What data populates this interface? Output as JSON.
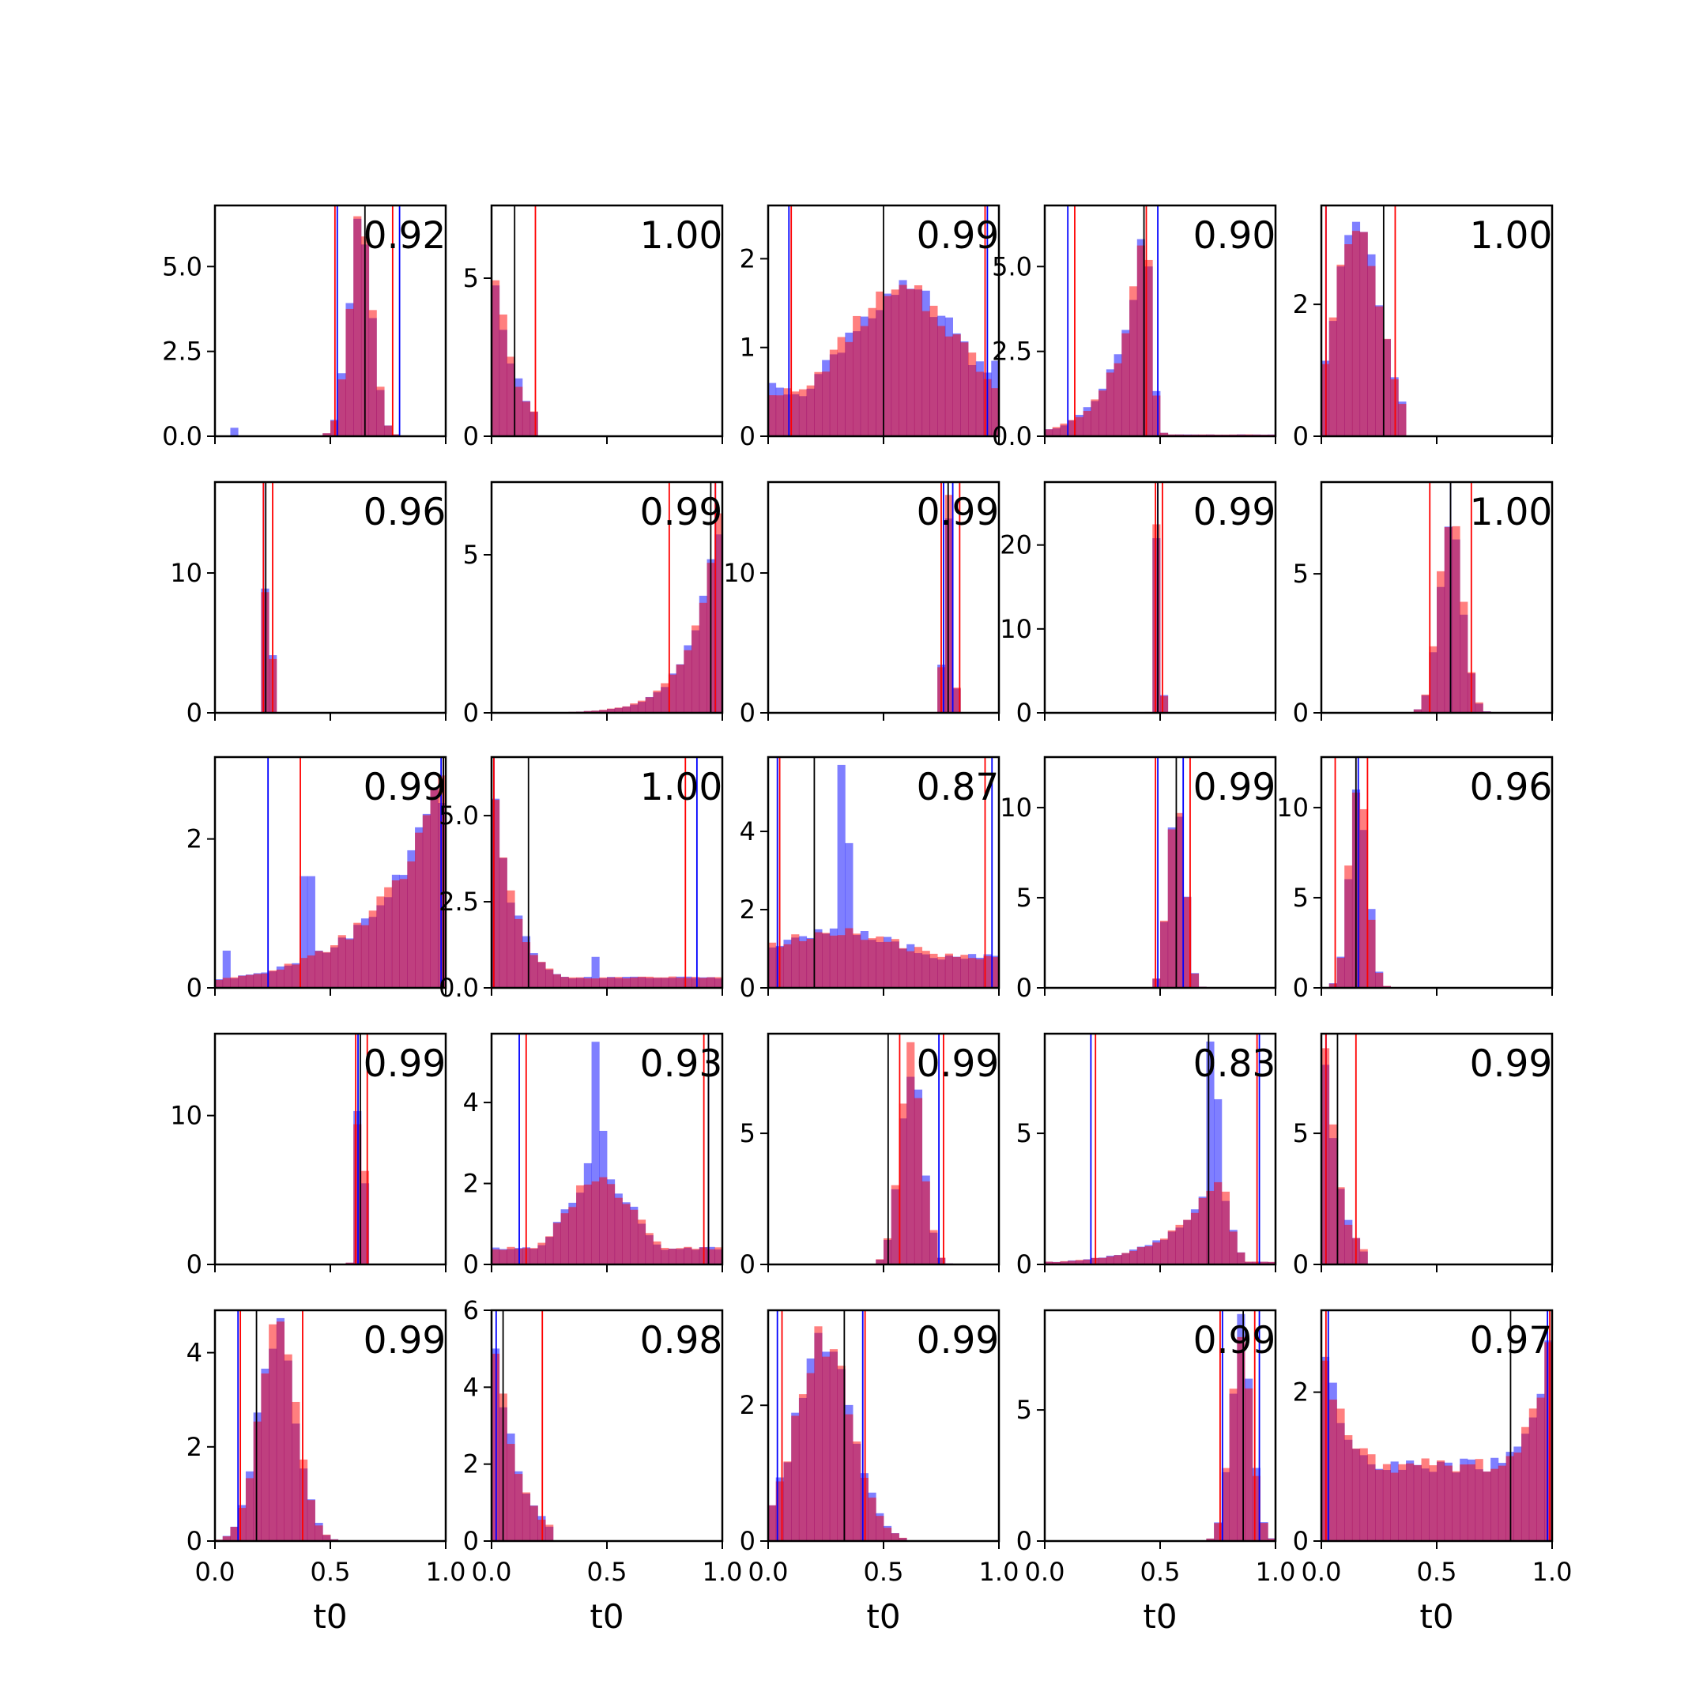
{
  "chart_data": {
    "type": "bar",
    "layout": "5x5 grid of histogram subplots",
    "xlabel": "t0",
    "xlim": [
      0,
      1
    ],
    "xticks": [
      "0.0",
      "0.5",
      "1.0"
    ],
    "series_colors": {
      "blue": "#0000ff",
      "red": "#ff0000",
      "blend": "#c03b74",
      "marker": "#000000"
    },
    "bins": 30,
    "panels": [
      {
        "row": 0,
        "col": 0,
        "score": "0.92",
        "ymax": 6.8,
        "yticks": [
          0,
          2.5,
          5
        ],
        "ytick_labels": [
          "0.0",
          "2.5",
          "5.0"
        ],
        "model": "peak",
        "center": 0.63,
        "width": 0.05,
        "floor": 0.02,
        "blue_extra": [
          [
            0.08,
            0.25
          ],
          [
            0.62,
            6.2
          ]
        ],
        "lines_black": [
          0.65
        ],
        "lines_red": [
          0.52,
          0.77
        ],
        "lines_blue": [
          0.53,
          0.8
        ]
      },
      {
        "row": 0,
        "col": 1,
        "score": "1.00",
        "ymax": 7.3,
        "yticks": [
          0,
          5
        ],
        "ytick_labels": [
          "0",
          "5"
        ],
        "model": "decay",
        "center": 0.0,
        "width": 0.09,
        "cutoff": 0.2,
        "peak": 6.3,
        "lines_black": [
          0.1
        ],
        "lines_red": [
          0.0,
          0.19
        ],
        "lines_blue": [
          0.0
        ]
      },
      {
        "row": 0,
        "col": 2,
        "score": "0.99",
        "ymax": 2.6,
        "yticks": [
          0,
          1,
          2
        ],
        "ytick_labels": [
          "0",
          "1",
          "2"
        ],
        "model": "broad",
        "center": 0.58,
        "width": 0.28,
        "floor": 0.5,
        "peak": 1.6,
        "blue_extra": [
          [
            0.02,
            0.6
          ],
          [
            0.98,
            0.85
          ]
        ],
        "lines_black": [
          0.5
        ],
        "lines_red": [
          0.1,
          0.94
        ],
        "lines_blue": [
          0.09,
          0.95
        ]
      },
      {
        "row": 0,
        "col": 3,
        "score": "0.90",
        "ymax": 6.8,
        "yticks": [
          0,
          2.5,
          5
        ],
        "ytick_labels": [
          "0.0",
          "2.5",
          "5.0"
        ],
        "model": "leftskew",
        "center": 0.43,
        "width": 0.12,
        "peak": 6.1,
        "floor": 0.05,
        "lines_black": [
          0.43
        ],
        "lines_red": [
          0.13,
          0.44
        ],
        "lines_blue": [
          0.1,
          0.49
        ]
      },
      {
        "row": 0,
        "col": 4,
        "score": "1.00",
        "ymax": 3.5,
        "yticks": [
          0,
          2
        ],
        "ytick_labels": [
          "0",
          "2"
        ],
        "model": "peak",
        "center": 0.16,
        "width": 0.1,
        "peak": 3.2,
        "cutoff": 0.38,
        "lines_black": [
          0.27
        ],
        "lines_red": [
          0.02,
          0.32
        ],
        "lines_blue": [
          0.02
        ]
      },
      {
        "row": 1,
        "col": 0,
        "score": "0.96",
        "ymax": 16.5,
        "yticks": [
          0,
          10
        ],
        "ytick_labels": [
          "0",
          "10"
        ],
        "model": "spike",
        "center": 0.23,
        "width": 0.012,
        "peak": 15.5,
        "lines_black": [
          0.22
        ],
        "lines_red": [
          0.21,
          0.25
        ],
        "lines_blue": [
          0.21
        ]
      },
      {
        "row": 1,
        "col": 1,
        "score": "0.99",
        "ymax": 7.3,
        "yticks": [
          0,
          5
        ],
        "ytick_labels": [
          "0",
          "5"
        ],
        "model": "rightrise",
        "center": 1.0,
        "width": 0.12,
        "peak": 6.9,
        "lines_black": [
          0.95
        ],
        "lines_red": [
          0.77,
          0.97
        ],
        "lines_blue": [
          0.97
        ]
      },
      {
        "row": 1,
        "col": 2,
        "score": "0.99",
        "ymax": 16.5,
        "yticks": [
          0,
          10
        ],
        "ytick_labels": [
          "0",
          "10"
        ],
        "model": "spike",
        "center": 0.78,
        "width": 0.018,
        "peak": 14.5,
        "lines_black": [
          0.78
        ],
        "lines_red": [
          0.75,
          0.83
        ],
        "lines_blue": [
          0.76,
          0.8
        ]
      },
      {
        "row": 1,
        "col": 3,
        "score": "0.99",
        "ymax": 27.5,
        "yticks": [
          0,
          10,
          20
        ],
        "ytick_labels": [
          "0",
          "10",
          "20"
        ],
        "model": "spike",
        "center": 0.49,
        "width": 0.012,
        "peak": 24.5,
        "lines_black": [
          0.49
        ],
        "lines_red": [
          0.48,
          0.51
        ],
        "lines_blue": [
          0.49
        ]
      },
      {
        "row": 1,
        "col": 4,
        "score": "1.00",
        "ymax": 8.3,
        "yticks": [
          0,
          5
        ],
        "ytick_labels": [
          "0",
          "5"
        ],
        "model": "peak",
        "center": 0.56,
        "width": 0.05,
        "peak": 7.2,
        "lines_black": [
          0.56
        ],
        "lines_red": [
          0.47,
          0.65
        ],
        "lines_blue": [
          0.56
        ]
      },
      {
        "row": 2,
        "col": 0,
        "score": "0.99",
        "ymax": 3.1,
        "yticks": [
          0,
          2
        ],
        "ytick_labels": [
          "0",
          "2"
        ],
        "model": "rightrise",
        "center": 1.0,
        "width": 0.3,
        "peak": 2.9,
        "floor": 0.1,
        "blue_extra": [
          [
            0.4,
            1.5
          ],
          [
            0.05,
            0.5
          ]
        ],
        "lines_black": [
          0.99
        ],
        "lines_red": [
          0.37,
          0.99
        ],
        "lines_blue": [
          0.23,
          0.98
        ]
      },
      {
        "row": 2,
        "col": 1,
        "score": "1.00",
        "ymax": 6.7,
        "yticks": [
          0,
          2.5,
          5
        ],
        "ytick_labels": [
          "0.0",
          "2.5",
          "5.0"
        ],
        "model": "decay",
        "center": 0.0,
        "width": 0.1,
        "peak": 6.3,
        "floor": 0.3,
        "blue_extra": [
          [
            0.45,
            0.9
          ]
        ],
        "lines_black": [
          0.16
        ],
        "lines_red": [
          0.01,
          0.84
        ],
        "lines_blue": [
          0.01,
          0.89
        ]
      },
      {
        "row": 2,
        "col": 2,
        "score": "0.87",
        "ymax": 5.9,
        "yticks": [
          0,
          2,
          4
        ],
        "ytick_labels": [
          "0",
          "2",
          "4"
        ],
        "model": "broad",
        "center": 0.3,
        "width": 0.4,
        "peak": 1.4,
        "floor": 0.8,
        "blue_extra": [
          [
            0.31,
            5.7
          ],
          [
            0.35,
            3.7
          ]
        ],
        "lines_black": [
          0.2
        ],
        "lines_red": [
          0.05,
          0.94
        ],
        "lines_blue": [
          0.04,
          0.97
        ]
      },
      {
        "row": 2,
        "col": 3,
        "score": "0.99",
        "ymax": 12.8,
        "yticks": [
          0,
          5,
          10
        ],
        "ytick_labels": [
          "0",
          "5",
          "10"
        ],
        "model": "peak",
        "center": 0.57,
        "width": 0.035,
        "peak": 11.3,
        "lines_black": [
          0.57
        ],
        "lines_red": [
          0.48,
          0.63
        ],
        "lines_blue": [
          0.49,
          0.6
        ]
      },
      {
        "row": 2,
        "col": 4,
        "score": "0.96",
        "ymax": 12.8,
        "yticks": [
          0,
          5,
          10
        ],
        "ytick_labels": [
          "0",
          "5",
          "10"
        ],
        "model": "peak",
        "center": 0.16,
        "width": 0.04,
        "peak": 11.2,
        "lines_black": [
          0.15
        ],
        "lines_red": [
          0.06,
          0.2
        ],
        "lines_blue": [
          0.16
        ]
      },
      {
        "row": 3,
        "col": 0,
        "score": "0.99",
        "ymax": 15.5,
        "yticks": [
          0,
          10
        ],
        "ytick_labels": [
          "0",
          "10"
        ],
        "model": "spike",
        "center": 0.63,
        "width": 0.015,
        "peak": 14.2,
        "lines_black": [
          0.63
        ],
        "lines_red": [
          0.61,
          0.66
        ],
        "lines_blue": [
          0.62
        ]
      },
      {
        "row": 3,
        "col": 1,
        "score": "0.93",
        "ymax": 5.7,
        "yticks": [
          0,
          2,
          4
        ],
        "ytick_labels": [
          "0",
          "2",
          "4"
        ],
        "model": "broad",
        "center": 0.47,
        "width": 0.15,
        "peak": 2.1,
        "floor": 0.4,
        "blue_extra": [
          [
            0.45,
            5.5
          ],
          [
            0.48,
            3.3
          ],
          [
            0.42,
            2.5
          ]
        ],
        "lines_black": [
          0.94
        ],
        "lines_red": [
          0.15,
          0.92
        ],
        "lines_blue": [
          0.12,
          0.94
        ]
      },
      {
        "row": 3,
        "col": 2,
        "score": "0.99",
        "ymax": 8.8,
        "yticks": [
          0,
          5
        ],
        "ytick_labels": [
          "0",
          "5"
        ],
        "model": "peak",
        "center": 0.62,
        "width": 0.05,
        "peak": 7.8,
        "lines_black": [
          0.52
        ],
        "lines_red": [
          0.57,
          0.76
        ],
        "lines_blue": [
          0.74
        ]
      },
      {
        "row": 3,
        "col": 3,
        "score": "0.83",
        "ymax": 8.8,
        "yticks": [
          0,
          5
        ],
        "ytick_labels": [
          "0",
          "5"
        ],
        "model": "leftskew",
        "center": 0.75,
        "width": 0.2,
        "peak": 3.3,
        "floor": 0.1,
        "blue_extra": [
          [
            0.73,
            8.5
          ],
          [
            0.76,
            6.3
          ],
          [
            0.71,
            4.0
          ]
        ],
        "lines_black": [
          0.71
        ],
        "lines_red": [
          0.22,
          0.92
        ],
        "lines_blue": [
          0.2,
          0.93
        ]
      },
      {
        "row": 3,
        "col": 4,
        "score": "0.99",
        "ymax": 8.8,
        "yticks": [
          0,
          5
        ],
        "ytick_labels": [
          "0",
          "5"
        ],
        "model": "decay",
        "center": 0.02,
        "width": 0.06,
        "peak": 8.3,
        "cutoff": 0.2,
        "lines_black": [
          0.07
        ],
        "lines_red": [
          0.02,
          0.15
        ],
        "lines_blue": [
          0.02
        ]
      },
      {
        "row": 4,
        "col": 0,
        "score": "0.99",
        "ymax": 4.9,
        "yticks": [
          0,
          2,
          4
        ],
        "ytick_labels": [
          "0",
          "2",
          "4"
        ],
        "model": "peak",
        "center": 0.27,
        "width": 0.08,
        "peak": 4.5,
        "lines_black": [
          0.18
        ],
        "lines_red": [
          0.11,
          0.38
        ],
        "lines_blue": [
          0.1
        ]
      },
      {
        "row": 4,
        "col": 1,
        "score": "0.98",
        "ymax": 6.0,
        "yticks": [
          0,
          2,
          4,
          6
        ],
        "ytick_labels": [
          "0",
          "2",
          "4",
          "6"
        ],
        "model": "decay",
        "center": 0.02,
        "width": 0.09,
        "peak": 5.3,
        "cutoff": 0.28,
        "lines_black": [
          0.05
        ],
        "lines_red": [
          0.0,
          0.22
        ],
        "lines_blue": [
          0.02
        ]
      },
      {
        "row": 4,
        "col": 2,
        "score": "0.99",
        "ymax": 3.4,
        "yticks": [
          0,
          2
        ],
        "ytick_labels": [
          "0",
          "2"
        ],
        "model": "peak",
        "center": 0.24,
        "width": 0.12,
        "peak": 3.0,
        "cutoff": 0.6,
        "lines_black": [
          0.33
        ],
        "lines_red": [
          0.06,
          0.42
        ],
        "lines_blue": [
          0.04,
          0.41
        ]
      },
      {
        "row": 4,
        "col": 3,
        "score": "0.99",
        "ymax": 8.8,
        "yticks": [
          0,
          5
        ],
        "ytick_labels": [
          "0",
          "5"
        ],
        "model": "peak",
        "center": 0.85,
        "width": 0.045,
        "peak": 8.0,
        "lines_black": [
          0.86
        ],
        "lines_red": [
          0.76,
          0.91
        ],
        "lines_blue": [
          0.77,
          0.93
        ]
      },
      {
        "row": 4,
        "col": 4,
        "score": "0.97",
        "ymax": 3.1,
        "yticks": [
          0,
          2
        ],
        "ytick_labels": [
          "0",
          "2"
        ],
        "model": "ushape",
        "center": 0.5,
        "width": 0.3,
        "peak": 2.9,
        "floor": 0.8,
        "lines_black": [
          0.82
        ],
        "lines_red": [
          0.02,
          0.99
        ],
        "lines_blue": [
          0.03,
          0.98
        ]
      }
    ]
  }
}
